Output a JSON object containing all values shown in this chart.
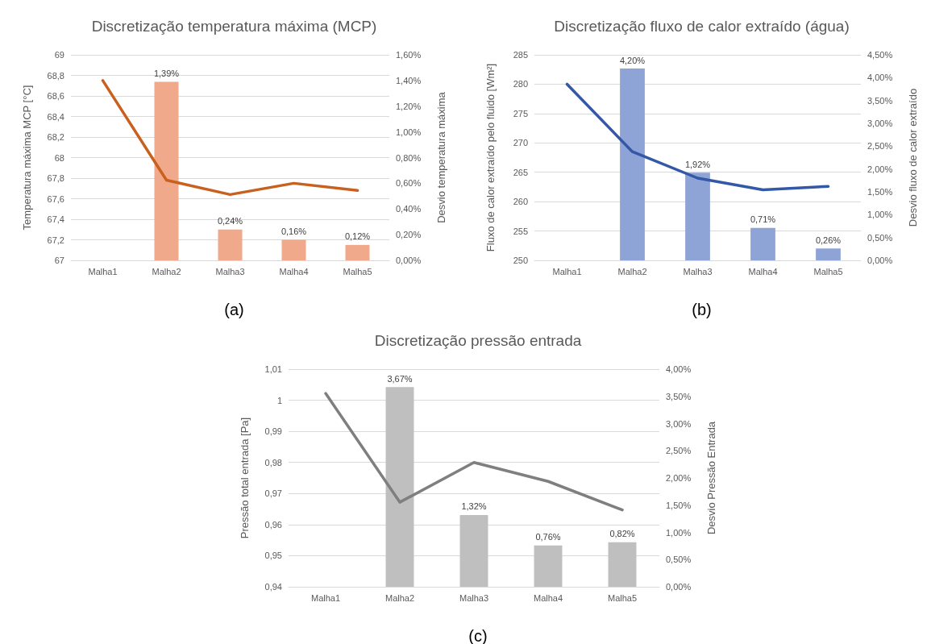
{
  "chart_data": [
    {
      "type": "bar",
      "title": "Discretização temperatura máxima (MCP)",
      "ylabel": "Temperatura máxima MCP [°C]",
      "y2label": "Desvio temperatura máxima",
      "categories": [
        "Malha1",
        "Malha2",
        "Malha3",
        "Malha4",
        "Malha5"
      ],
      "series": [
        {
          "axis": "y2",
          "color": "#f0a98a",
          "values": [
            null,
            1.39,
            0.24,
            0.16,
            0.12
          ],
          "value_labels": [
            null,
            "1,39%",
            "0,24%",
            "0,16%",
            "0,12%"
          ]
        },
        {
          "type": "line",
          "color": "#c8601e",
          "values": [
            68.75,
            67.78,
            67.64,
            67.75,
            67.68
          ]
        }
      ],
      "ylim": [
        67,
        69
      ],
      "yticks": [
        67,
        {
          "value": 67.2,
          "label": "67,2"
        },
        {
          "value": 67.4,
          "label": "67,4"
        },
        {
          "value": 67.6,
          "label": "67,6"
        },
        {
          "value": 67.8,
          "label": "67,8"
        },
        68,
        {
          "value": 68.2,
          "label": "68,2"
        },
        {
          "value": 68.4,
          "label": "68,4"
        },
        {
          "value": 68.6,
          "label": "68,6"
        },
        {
          "value": 68.8,
          "label": "68,8"
        },
        69
      ],
      "y2lim": [
        0,
        1.6
      ],
      "y2ticks": [
        {
          "value": 0,
          "label": "0,00%"
        },
        {
          "value": 0.2,
          "label": "0,20%"
        },
        {
          "value": 0.4,
          "label": "0,40%"
        },
        {
          "value": 0.6,
          "label": "0,60%"
        },
        {
          "value": 0.8,
          "label": "0,80%"
        },
        {
          "value": 1,
          "label": "1,00%"
        },
        {
          "value": 1.2,
          "label": "1,20%"
        },
        {
          "value": 1.4,
          "label": "1,40%"
        },
        {
          "value": 1.6,
          "label": "1,60%"
        }
      ],
      "grid": "y",
      "marker": "none",
      "annotations": [
        "(a)"
      ]
    },
    {
      "type": "bar",
      "title": "Discretização fluxo de calor extraído (água)",
      "ylabel": "Fluxo de calor extraído pelo fluido [Wm²]",
      "y2label": "Desvio fluxo de calor extraído",
      "categories": [
        "Malha1",
        "Malha2",
        "Malha3",
        "Malha4",
        "Malha5"
      ],
      "series": [
        {
          "axis": "y2",
          "color": "#8fa4d6",
          "values": [
            null,
            4.2,
            1.92,
            0.71,
            0.26
          ],
          "value_labels": [
            null,
            "4,20%",
            "1,92%",
            "0,71%",
            "0,26%"
          ]
        },
        {
          "type": "line",
          "color": "#3458a8",
          "values": [
            280,
            268.5,
            264,
            262,
            262.6
          ]
        }
      ],
      "ylim": [
        250,
        285
      ],
      "yticks": [
        250,
        255,
        260,
        265,
        270,
        275,
        280,
        285
      ],
      "y2lim": [
        0,
        4.5
      ],
      "y2ticks": [
        {
          "value": 0,
          "label": "0,00%"
        },
        {
          "value": 0.5,
          "label": "0,50%"
        },
        {
          "value": 1,
          "label": "1,00%"
        },
        {
          "value": 1.5,
          "label": "1,50%"
        },
        {
          "value": 2,
          "label": "2,00%"
        },
        {
          "value": 2.5,
          "label": "2,50%"
        },
        {
          "value": 3,
          "label": "3,00%"
        },
        {
          "value": 3.5,
          "label": "3,50%"
        },
        {
          "value": 4,
          "label": "4,00%"
        },
        {
          "value": 4.5,
          "label": "4,50%"
        }
      ],
      "grid": "y",
      "marker": "none",
      "annotations": [
        "(b)"
      ]
    },
    {
      "type": "bar",
      "title": "Discretização pressão entrada",
      "ylabel": "Pressão total entrada [Pa]",
      "y2label": "Desvio Pressão Entrada",
      "categories": [
        "Malha1",
        "Malha2",
        "Malha3",
        "Malha4",
        "Malha5"
      ],
      "series": [
        {
          "axis": "y2",
          "color": "#bfbfbf",
          "values": [
            null,
            3.67,
            1.32,
            0.76,
            0.82
          ],
          "value_labels": [
            null,
            "3,67%",
            "1,32%",
            "0,76%",
            "0,82%"
          ]
        },
        {
          "type": "line",
          "color": "#7f7f7f",
          "values": [
            1.0022,
            0.9672,
            0.98,
            0.9739,
            0.9647
          ]
        }
      ],
      "ylim": [
        0.94,
        1.01
      ],
      "yticks": [
        {
          "value": 0.94,
          "label": "0,94"
        },
        {
          "value": 0.95,
          "label": "0,95"
        },
        {
          "value": 0.96,
          "label": "0,96"
        },
        {
          "value": 0.97,
          "label": "0,97"
        },
        {
          "value": 0.98,
          "label": "0,98"
        },
        {
          "value": 0.99,
          "label": "0,99"
        },
        1,
        {
          "value": 1.01,
          "label": "1,01"
        }
      ],
      "y2lim": [
        0,
        4
      ],
      "y2ticks": [
        {
          "value": 0,
          "label": "0,00%"
        },
        {
          "value": 0.5,
          "label": "0,50%"
        },
        {
          "value": 1,
          "label": "1,00%"
        },
        {
          "value": 1.5,
          "label": "1,50%"
        },
        {
          "value": 2,
          "label": "2,00%"
        },
        {
          "value": 2.5,
          "label": "2,50%"
        },
        {
          "value": 3,
          "label": "3,00%"
        },
        {
          "value": 3.5,
          "label": "3,50%"
        },
        {
          "value": 4,
          "label": "4,00%"
        }
      ],
      "grid": "y",
      "marker": "none",
      "annotations": [
        "(c)"
      ]
    }
  ]
}
